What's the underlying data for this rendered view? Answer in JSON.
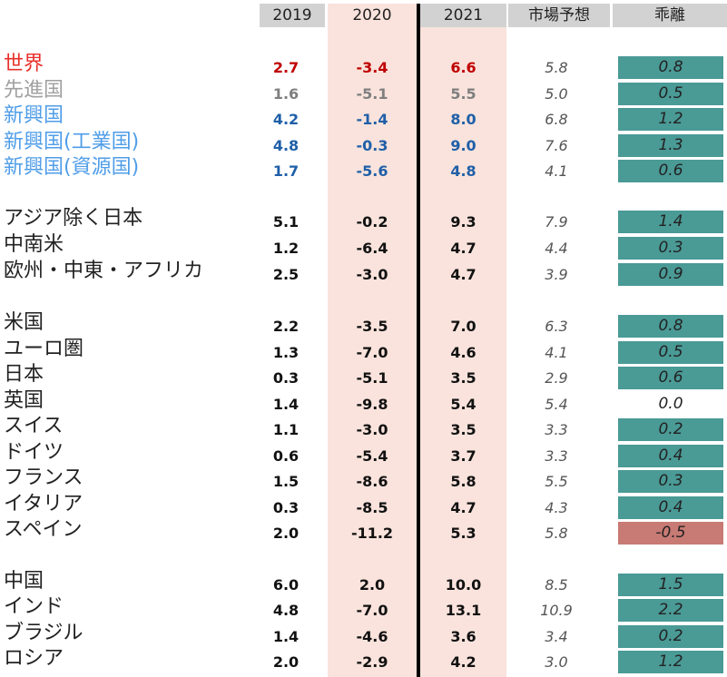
{
  "headers": {
    "y2019": "2019",
    "y2020": "2020",
    "y2021": "2021",
    "forecast": "市場予想",
    "deviation": "乖離"
  },
  "colors": {
    "world": "#e8302a",
    "advanced": "#a0a0a0",
    "emerging": "#4f9de8",
    "num_world": "#c00000",
    "num_advanced": "#7f7f7f",
    "num_emerging": "#1f5fa8",
    "num_default": "#111111",
    "dev_positive": "#4a9a96",
    "dev_negative": "#c87a74",
    "dev_zero": "transparent"
  },
  "chart_data": {
    "type": "table",
    "columns": [
      "2019",
      "2020",
      "2021",
      "市場予想",
      "乖離"
    ],
    "rows": [
      {
        "label": "世界",
        "v2019": "2.7",
        "v2020": "-3.4",
        "v2021": "6.6",
        "forecast": "5.8",
        "deviation": "0.8",
        "group": "world"
      },
      {
        "label": "先進国",
        "v2019": "1.6",
        "v2020": "-5.1",
        "v2021": "5.5",
        "forecast": "5.0",
        "deviation": "0.5",
        "group": "advanced"
      },
      {
        "label": "新興国",
        "v2019": "4.2",
        "v2020": "-1.4",
        "v2021": "8.0",
        "forecast": "6.8",
        "deviation": "1.2",
        "group": "emerging"
      },
      {
        "label": "新興国(工業国)",
        "v2019": "4.8",
        "v2020": "-0.3",
        "v2021": "9.0",
        "forecast": "7.6",
        "deviation": "1.3",
        "group": "emerging"
      },
      {
        "label": "新興国(資源国)",
        "v2019": "1.7",
        "v2020": "-5.6",
        "v2021": "4.8",
        "forecast": "4.1",
        "deviation": "0.6",
        "group": "emerging"
      },
      {
        "label": "アジア除く日本",
        "v2019": "5.1",
        "v2020": "-0.2",
        "v2021": "9.3",
        "forecast": "7.9",
        "deviation": "1.4",
        "group": "default"
      },
      {
        "label": "中南米",
        "v2019": "1.2",
        "v2020": "-6.4",
        "v2021": "4.7",
        "forecast": "4.4",
        "deviation": "0.3",
        "group": "default"
      },
      {
        "label": "欧州・中東・アフリカ",
        "v2019": "2.5",
        "v2020": "-3.0",
        "v2021": "4.7",
        "forecast": "3.9",
        "deviation": "0.9",
        "group": "default"
      },
      {
        "label": "米国",
        "v2019": "2.2",
        "v2020": "-3.5",
        "v2021": "7.0",
        "forecast": "6.3",
        "deviation": "0.8",
        "group": "default"
      },
      {
        "label": "ユーロ圏",
        "v2019": "1.3",
        "v2020": "-7.0",
        "v2021": "4.6",
        "forecast": "4.1",
        "deviation": "0.5",
        "group": "default"
      },
      {
        "label": "日本",
        "v2019": "0.3",
        "v2020": "-5.1",
        "v2021": "3.5",
        "forecast": "2.9",
        "deviation": "0.6",
        "group": "default"
      },
      {
        "label": "英国",
        "v2019": "1.4",
        "v2020": "-9.8",
        "v2021": "5.4",
        "forecast": "5.4",
        "deviation": "0.0",
        "group": "default"
      },
      {
        "label": "スイス",
        "v2019": "1.1",
        "v2020": "-3.0",
        "v2021": "3.5",
        "forecast": "3.3",
        "deviation": "0.2",
        "group": "default"
      },
      {
        "label": "ドイツ",
        "v2019": "0.6",
        "v2020": "-5.4",
        "v2021": "3.7",
        "forecast": "3.3",
        "deviation": "0.4",
        "group": "default"
      },
      {
        "label": "フランス",
        "v2019": "1.5",
        "v2020": "-8.6",
        "v2021": "5.8",
        "forecast": "5.5",
        "deviation": "0.3",
        "group": "default"
      },
      {
        "label": "イタリア",
        "v2019": "0.3",
        "v2020": "-8.5",
        "v2021": "4.7",
        "forecast": "4.3",
        "deviation": "0.4",
        "group": "default"
      },
      {
        "label": "スペイン",
        "v2019": "2.0",
        "v2020": "-11.2",
        "v2021": "5.3",
        "forecast": "5.8",
        "deviation": "-0.5",
        "group": "default"
      },
      {
        "label": "中国",
        "v2019": "6.0",
        "v2020": "2.0",
        "v2021": "10.0",
        "forecast": "8.5",
        "deviation": "1.5",
        "group": "default"
      },
      {
        "label": "インド",
        "v2019": "4.8",
        "v2020": "-7.0",
        "v2021": "13.1",
        "forecast": "10.9",
        "deviation": "2.2",
        "group": "default"
      },
      {
        "label": "ブラジル",
        "v2019": "1.4",
        "v2020": "-4.6",
        "v2021": "3.6",
        "forecast": "3.4",
        "deviation": "0.2",
        "group": "default"
      },
      {
        "label": "ロシア",
        "v2019": "2.0",
        "v2020": "-2.9",
        "v2021": "4.2",
        "forecast": "3.0",
        "deviation": "1.2",
        "group": "default"
      }
    ]
  }
}
